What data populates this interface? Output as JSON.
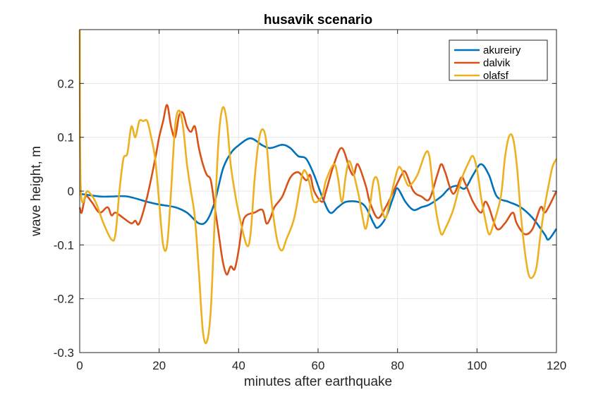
{
  "chart_data": {
    "type": "line",
    "title": "husavik scenario",
    "xlabel": "minutes after earthquake",
    "ylabel": "wave height, m",
    "xlim": [
      0,
      120
    ],
    "ylim": [
      -0.3,
      0.3
    ],
    "xticks": [
      0,
      20,
      40,
      60,
      80,
      100,
      120
    ],
    "xtick_labels": [
      "0",
      "20",
      "40",
      "60",
      "80",
      "100",
      "120"
    ],
    "yticks": [
      -0.3,
      -0.2,
      -0.1,
      0,
      0.1,
      0.2
    ],
    "ytick_labels": [
      "-0.3",
      "-0.2",
      "-0.1",
      "0",
      "0.1",
      "0.2"
    ],
    "grid": true,
    "legend_position": "top-right",
    "series": [
      {
        "name": "akureiry",
        "color": "#0072BD",
        "x": [
          0,
          5,
          8,
          12,
          17,
          20,
          24,
          27,
          30,
          32,
          34,
          36,
          38,
          40,
          43,
          46,
          48,
          51,
          53,
          55,
          57,
          59,
          61,
          63,
          65,
          67,
          70,
          72,
          74,
          75,
          77,
          79,
          80,
          82,
          84,
          86,
          88,
          91,
          93,
          95,
          97,
          99,
          101,
          103,
          105,
          108,
          111,
          114,
          117,
          118,
          120
        ],
        "y": [
          -0.005,
          -0.01,
          -0.01,
          -0.01,
          -0.02,
          -0.025,
          -0.03,
          -0.04,
          -0.06,
          -0.055,
          -0.02,
          0.04,
          0.07,
          0.085,
          0.098,
          0.085,
          0.08,
          0.086,
          0.08,
          0.065,
          0.06,
          0.03,
          -0.01,
          -0.04,
          -0.03,
          -0.02,
          -0.02,
          -0.03,
          -0.06,
          -0.068,
          -0.05,
          -0.01,
          0.005,
          -0.02,
          -0.035,
          -0.03,
          -0.025,
          -0.01,
          0.005,
          0.01,
          0.005,
          0.03,
          0.05,
          0.03,
          -0.01,
          -0.02,
          -0.03,
          -0.05,
          -0.08,
          -0.09,
          -0.07
        ]
      },
      {
        "name": "dalvik",
        "color": "#D95319",
        "x": [
          0,
          0.5,
          1.5,
          3,
          5,
          7,
          8,
          9,
          11,
          13,
          14,
          15,
          17,
          19,
          20,
          21,
          22,
          23,
          24,
          25,
          26,
          27,
          28,
          29,
          30,
          31,
          32,
          33,
          34,
          35,
          36,
          37,
          38,
          39,
          40,
          41,
          42,
          44,
          46,
          47,
          48,
          49,
          51,
          53,
          55,
          57,
          58,
          59,
          61,
          62,
          64,
          66,
          68,
          69,
          70,
          72,
          73,
          75,
          77,
          79,
          81,
          82,
          84,
          86,
          88,
          90,
          91,
          92,
          94,
          96,
          97,
          99,
          101,
          102,
          103,
          105,
          107,
          109,
          110,
          112,
          114,
          116,
          117,
          118,
          120
        ],
        "y": [
          -0.03,
          -0.04,
          -0.01,
          -0.02,
          -0.04,
          -0.03,
          -0.045,
          -0.04,
          -0.05,
          -0.06,
          -0.055,
          -0.06,
          -0.01,
          0.06,
          0.1,
          0.13,
          0.16,
          0.12,
          0.1,
          0.14,
          0.145,
          0.12,
          0.11,
          0.12,
          0.08,
          0.05,
          0.03,
          0.02,
          -0.03,
          -0.08,
          -0.13,
          -0.155,
          -0.14,
          -0.145,
          -0.11,
          -0.06,
          -0.045,
          -0.04,
          -0.035,
          -0.06,
          -0.05,
          -0.03,
          -0.01,
          0.025,
          0.035,
          0.02,
          0.03,
          0.0,
          -0.02,
          0.0,
          0.05,
          0.08,
          0.04,
          0.03,
          0.05,
          0.01,
          -0.02,
          -0.05,
          -0.03,
          0.0,
          0.03,
          0.035,
          0.0,
          -0.01,
          -0.015,
          0.03,
          0.05,
          0.035,
          -0.005,
          0.025,
          0.015,
          -0.02,
          -0.04,
          -0.02,
          -0.03,
          -0.07,
          -0.06,
          -0.04,
          -0.06,
          -0.08,
          -0.07,
          -0.03,
          -0.04,
          -0.03,
          0.0
        ]
      },
      {
        "name": "olafsf",
        "color": "#EDB120",
        "x": [
          0,
          0.3,
          2,
          4,
          6,
          8,
          9,
          10,
          11,
          12,
          13,
          14,
          15,
          16,
          17,
          18,
          19,
          20,
          21,
          22,
          23,
          24,
          25,
          26,
          27,
          28,
          29,
          30,
          31,
          32,
          33,
          34,
          35,
          36,
          37,
          38,
          39,
          40,
          42,
          43,
          44,
          45,
          46,
          47,
          48,
          49,
          50,
          51,
          52,
          54,
          56,
          57,
          58,
          59,
          61,
          62,
          64,
          65,
          66,
          67,
          68,
          70,
          71,
          72,
          73,
          74,
          75,
          76,
          77,
          78,
          80,
          81,
          82,
          83,
          85,
          87,
          88,
          89,
          90,
          91,
          92,
          94,
          96,
          98,
          99,
          100,
          101,
          102,
          103,
          104,
          106,
          107,
          108,
          109,
          110,
          111,
          112,
          113,
          114,
          115,
          116,
          117,
          118,
          119,
          120
        ],
        "y": [
          0.3,
          0.0,
          0.0,
          -0.02,
          -0.06,
          -0.09,
          -0.08,
          0.0,
          0.06,
          0.07,
          0.12,
          0.1,
          0.13,
          0.13,
          0.13,
          0.1,
          0.06,
          -0.02,
          -0.1,
          -0.1,
          0.0,
          0.12,
          0.15,
          0.12,
          0.05,
          0.0,
          -0.05,
          -0.15,
          -0.26,
          -0.28,
          -0.22,
          -0.05,
          0.1,
          0.155,
          0.13,
          0.05,
          0.0,
          -0.04,
          -0.1,
          -0.08,
          0.02,
          0.09,
          0.115,
          0.09,
          0.0,
          -0.06,
          -0.1,
          -0.11,
          -0.09,
          -0.05,
          0.03,
          0.035,
          0.01,
          -0.02,
          -0.01,
          0.02,
          0.05,
          0.025,
          -0.02,
          0.03,
          0.055,
          0.0,
          -0.04,
          -0.07,
          -0.03,
          0.02,
          0.02,
          -0.03,
          -0.05,
          -0.02,
          0.04,
          0.04,
          0.02,
          0.01,
          0.03,
          0.07,
          0.065,
          0.0,
          -0.05,
          -0.08,
          -0.07,
          -0.035,
          0.02,
          0.055,
          0.065,
          0.04,
          -0.01,
          -0.05,
          -0.08,
          -0.065,
          -0.01,
          0.06,
          0.1,
          0.1,
          0.05,
          -0.04,
          -0.11,
          -0.155,
          -0.16,
          -0.14,
          -0.08,
          -0.03,
          0.01,
          0.045,
          0.06
        ]
      }
    ]
  }
}
